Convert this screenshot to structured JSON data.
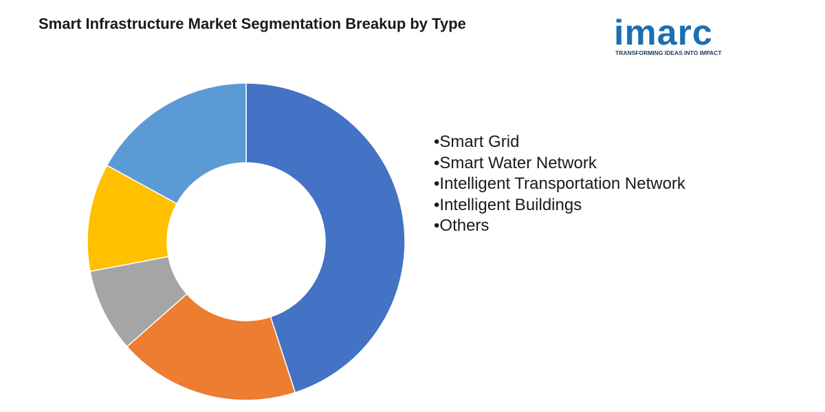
{
  "logo": {
    "word": "imarc",
    "tagline": "TRANSFORMING IDEAS INTO IMPACT"
  },
  "chart_data": {
    "type": "pie",
    "title": "Smart Infrastructure Market Segmentation Breakup by Type",
    "categories": [
      "Smart Grid",
      "Smart Water Network",
      "Intelligent Transportation Network",
      "Intelligent Buildings",
      "Others"
    ],
    "values": [
      45,
      18.5,
      8.5,
      11,
      17
    ],
    "colors": [
      "#4472c4",
      "#ed7d31",
      "#a5a5a5",
      "#ffc000",
      "#5b9bd5"
    ],
    "legend_placement": "right",
    "donut": true
  }
}
